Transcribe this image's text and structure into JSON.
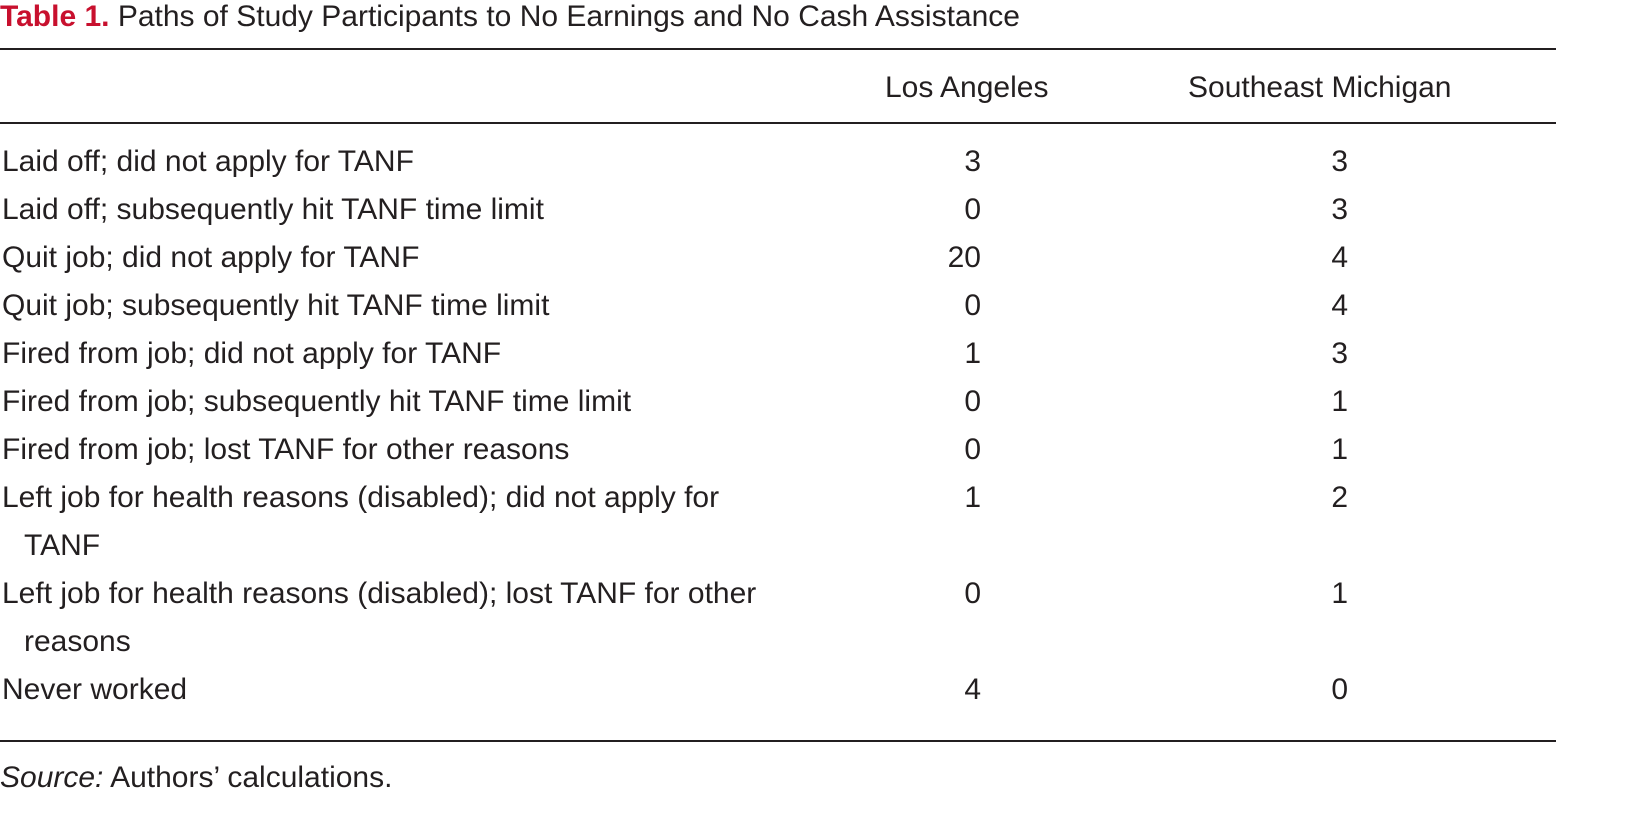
{
  "table": {
    "label": "Table 1.",
    "title": " Paths of Study Participants to No Earnings and No Cash Assistance",
    "columns": [
      "Los Angeles",
      "Southeast Michigan"
    ],
    "rows": [
      {
        "category": "Laid off; did not apply for TANF",
        "los_angeles": "3",
        "southeast_michigan": "3"
      },
      {
        "category": "Laid off; subsequently hit TANF time limit",
        "los_angeles": "0",
        "southeast_michigan": "3"
      },
      {
        "category": "Quit job; did not apply for TANF",
        "los_angeles": "20",
        "southeast_michigan": "4"
      },
      {
        "category": "Quit job; subsequently hit TANF time limit",
        "los_angeles": "0",
        "southeast_michigan": "4"
      },
      {
        "category": "Fired from job; did not apply for TANF",
        "los_angeles": "1",
        "southeast_michigan": "3"
      },
      {
        "category": "Fired from job; subsequently hit TANF time limit",
        "los_angeles": "0",
        "southeast_michigan": "1"
      },
      {
        "category": "Fired from job; lost TANF for other reasons",
        "los_angeles": "0",
        "southeast_michigan": "1"
      },
      {
        "category": "Left job for health reasons (disabled); did not apply for TANF",
        "los_angeles": "1",
        "southeast_michigan": "2"
      },
      {
        "category": "Left job for health reasons (disabled); lost TANF for other reasons",
        "los_angeles": "0",
        "southeast_michigan": "1"
      },
      {
        "category": "Never worked",
        "los_angeles": "4",
        "southeast_michigan": "0"
      }
    ],
    "source_label": "Source:",
    "source_text": " Authors’ calculations."
  },
  "colors": {
    "label": "#c8102e",
    "text": "#231f20"
  }
}
